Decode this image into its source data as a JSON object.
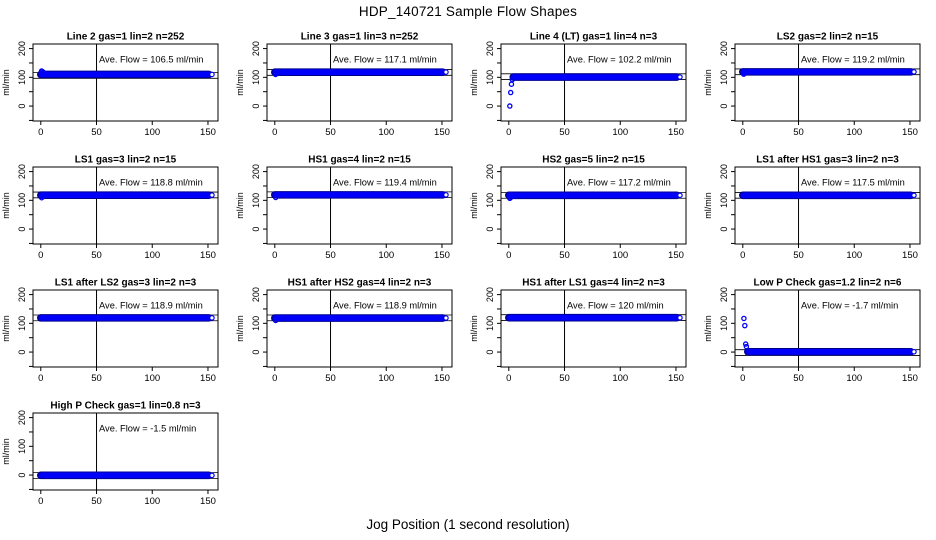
{
  "figure": {
    "title": "HDP_140721  Sample Flow Shapes",
    "xlabel": "Jog Position (1 second resolution)"
  },
  "colors": {
    "data_core": "#0000fa",
    "data_edge": "#000090",
    "axis": "#000000",
    "background": "#ffffff"
  },
  "chart_data": {
    "type": "scatter",
    "title": "HDP_140721  Sample Flow Shapes",
    "xlabel": "Jog Position (1 second resolution)",
    "ylabel": "ml/min",
    "layout": {
      "rows": 4,
      "cols": 4,
      "xlim": [
        -7,
        159
      ],
      "ylim": [
        -52,
        216
      ],
      "x_ticks": [
        0,
        50,
        100,
        150
      ],
      "y_ticks": [
        -50,
        0,
        50,
        100,
        150,
        200
      ],
      "y_tick_labeled": [
        0,
        100,
        200
      ],
      "vline_x": 50,
      "hline_offsets": [
        -10,
        10
      ],
      "grid": false,
      "legend": "none"
    },
    "panels": [
      {
        "title": "Line 2 gas=1 lin=2 n=252",
        "flow_label": "Ave. Flow =  106.5  ml/min",
        "ave_flow": 106.5,
        "level": 110,
        "band_start": 0,
        "band_end": 152.5,
        "startup_points": [
          [
            0.7,
            122
          ],
          [
            1.5,
            120
          ],
          [
            2.3,
            117
          ],
          [
            3.1,
            114
          ]
        ]
      },
      {
        "title": "Line 3 gas=1 lin=3 n=252",
        "flow_label": "Ave. Flow =  117.1  ml/min",
        "ave_flow": 117.1,
        "level": 118,
        "band_start": 0,
        "band_end": 152.5,
        "startup_points": [
          [
            0.7,
            110
          ],
          [
            1.5,
            113
          ]
        ]
      },
      {
        "title": "Line 4 (LT) gas=1 lin=4 n=3",
        "flow_label": "Ave. Flow =  102.2  ml/min",
        "ave_flow": 102.2,
        "level": 101,
        "band_start": 4,
        "band_end": 152.5,
        "startup_points": [
          [
            0.9,
            0
          ],
          [
            1.7,
            47
          ],
          [
            2.4,
            76
          ],
          [
            3.1,
            92
          ]
        ]
      },
      {
        "title": "LS2 gas=2 lin=2 n=15",
        "flow_label": "Ave. Flow =  119.2  ml/min",
        "ave_flow": 119.2,
        "level": 119,
        "band_start": 0,
        "band_end": 152.5,
        "startup_points": [
          [
            0.8,
            111
          ],
          [
            1.5,
            115
          ]
        ]
      },
      {
        "title": "LS1 gas=3 lin=2 n=15",
        "flow_label": "Ave. Flow =  118.8  ml/min",
        "ave_flow": 118.8,
        "level": 118,
        "band_start": 0,
        "band_end": 152.5,
        "startup_points": [
          [
            0.8,
            109
          ],
          [
            1.6,
            113
          ]
        ]
      },
      {
        "title": "HS1 gas=4 lin=2 n=15",
        "flow_label": "Ave. Flow =  119.4  ml/min",
        "ave_flow": 119.4,
        "level": 119,
        "band_start": 0,
        "band_end": 152.5,
        "startup_points": [
          [
            0.8,
            110
          ]
        ]
      },
      {
        "title": "HS2 gas=5 lin=2 n=15",
        "flow_label": "Ave. Flow =  117.2  ml/min",
        "ave_flow": 117.2,
        "level": 117.5,
        "band_start": 0,
        "band_end": 152.5,
        "startup_points": [
          [
            0.9,
            107
          ],
          [
            1.7,
            110
          ]
        ]
      },
      {
        "title": "LS1 after HS1 gas=3 lin=2 n=3",
        "flow_label": "Ave. Flow =  117.5  ml/min",
        "ave_flow": 117.5,
        "level": 117.5,
        "band_start": 0,
        "band_end": 152.5,
        "startup_points": []
      },
      {
        "title": "LS1 after LS2 gas=3 lin=2 n=3",
        "flow_label": "Ave. Flow =  118.9  ml/min",
        "ave_flow": 118.9,
        "level": 119,
        "band_start": 0,
        "band_end": 152.5,
        "startup_points": []
      },
      {
        "title": "HS1 after HS2 gas=4 lin=2 n=3",
        "flow_label": "Ave. Flow =  118.9  ml/min",
        "ave_flow": 118.9,
        "level": 118.5,
        "band_start": 0,
        "band_end": 152.5,
        "startup_points": [
          [
            0.8,
            110
          ]
        ]
      },
      {
        "title": "HS1 after LS1 gas=4 lin=2 n=3",
        "flow_label": "Ave. Flow =  120  ml/min",
        "ave_flow": 120,
        "level": 119.5,
        "band_start": 0,
        "band_end": 152.5,
        "startup_points": []
      },
      {
        "title": "Low P Check gas=1.2 lin=2 n=6",
        "flow_label": "Ave. Flow =  -1.7  ml/min",
        "ave_flow": -1.7,
        "level": 1,
        "band_start": 4.5,
        "band_end": 152.5,
        "startup_points": [
          [
            1,
            117
          ],
          [
            1.8,
            92
          ],
          [
            2.6,
            28
          ],
          [
            3.2,
            19
          ]
        ]
      },
      {
        "title": "High P Check gas=1 lin=0.8 n=3",
        "flow_label": "Ave. Flow =  -1.5  ml/min",
        "ave_flow": -1.5,
        "level": -1,
        "band_start": 0,
        "band_end": 152.5,
        "startup_points": []
      }
    ]
  }
}
